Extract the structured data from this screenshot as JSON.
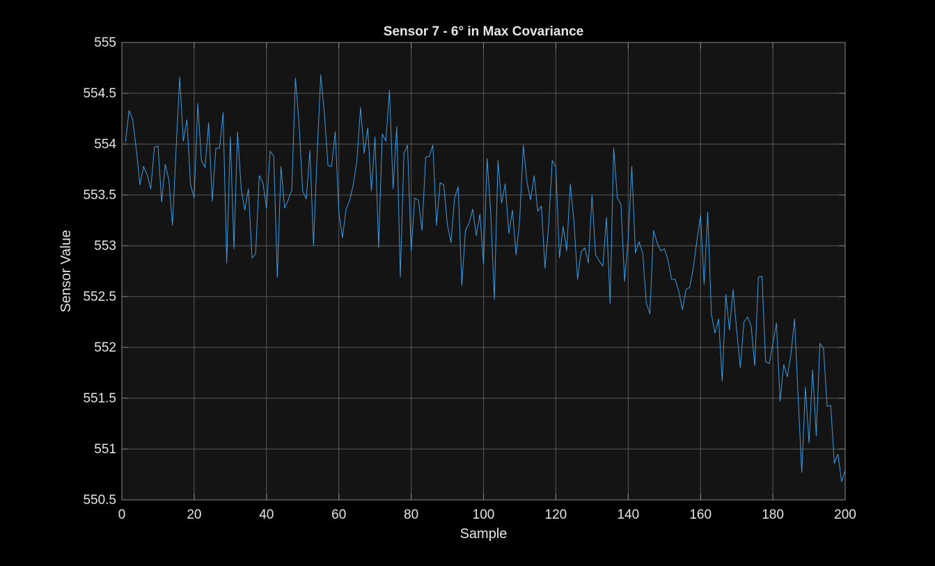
{
  "chart_data": {
    "type": "line",
    "title": "Sensor 7 - 6° in Max Covariance",
    "xlabel": "Sample",
    "ylabel": "Sensor Value",
    "xlim": [
      0,
      200
    ],
    "ylim": [
      550.5,
      555
    ],
    "xticks": [
      0,
      20,
      40,
      60,
      80,
      100,
      120,
      140,
      160,
      180,
      200
    ],
    "yticks": [
      550.5,
      551,
      551.5,
      552,
      552.5,
      553,
      553.5,
      554,
      554.5,
      555
    ],
    "ytick_labels": [
      "550.5",
      "551",
      "551.5",
      "552",
      "552.5",
      "553",
      "553.5",
      "554",
      "554.5",
      "555"
    ],
    "grid": true,
    "colors": {
      "figure_bg": "#000000",
      "axes_bg": "#141414",
      "line": "#3d9be0",
      "grid": "#5a5a5a",
      "text": "#e6e6e6"
    },
    "series": [
      {
        "x": [
          1,
          2,
          3,
          4,
          5,
          6,
          7,
          8,
          9,
          10,
          11,
          12,
          13,
          14,
          15,
          16,
          17,
          18,
          19,
          20,
          21,
          22,
          23,
          24,
          25,
          26,
          27,
          28,
          29,
          30,
          31,
          32,
          33,
          34,
          35,
          36,
          37,
          38,
          39,
          40,
          41,
          42,
          43,
          44,
          45,
          46,
          47,
          48,
          49,
          50,
          51,
          52,
          53,
          54,
          55,
          56,
          57,
          58,
          59,
          60,
          61,
          62,
          63,
          64,
          65,
          66,
          67,
          68,
          69,
          70,
          71,
          72,
          73,
          74,
          75,
          76,
          77,
          78,
          79,
          80,
          81,
          82,
          83,
          84,
          85,
          86,
          87,
          88,
          89,
          90,
          91,
          92,
          93,
          94,
          95,
          96,
          97,
          98,
          99,
          100,
          101,
          102,
          103,
          104,
          105,
          106,
          107,
          108,
          109,
          110,
          111,
          112,
          113,
          114,
          115,
          116,
          117,
          118,
          119,
          120,
          121,
          122,
          123,
          124,
          125,
          126,
          127,
          128,
          129,
          130,
          131,
          132,
          133,
          134,
          135,
          136,
          137,
          138,
          139,
          140,
          141,
          142,
          143,
          144,
          145,
          146,
          147,
          148,
          149,
          150,
          151,
          152,
          153,
          154,
          155,
          156,
          157,
          158,
          159,
          160,
          161,
          162,
          163,
          164,
          165,
          166,
          167,
          168,
          169,
          170,
          171,
          172,
          173,
          174,
          175,
          176,
          177,
          178,
          179,
          180,
          181,
          182,
          183,
          184,
          185,
          186,
          187,
          188,
          189,
          190,
          191,
          192,
          193,
          194,
          195,
          196,
          197,
          198,
          199,
          200
        ],
        "values": [
          554.02,
          554.33,
          554.24,
          553.95,
          553.6,
          553.78,
          553.7,
          553.56,
          553.97,
          553.98,
          553.43,
          553.8,
          553.65,
          553.2,
          553.95,
          554.66,
          554.03,
          554.24,
          553.6,
          553.47,
          554.4,
          553.84,
          553.77,
          554.21,
          553.44,
          553.96,
          553.96,
          554.31,
          552.83,
          554.07,
          552.97,
          554.12,
          553.56,
          553.35,
          553.56,
          552.88,
          552.92,
          553.69,
          553.62,
          553.37,
          553.93,
          553.88,
          552.69,
          553.78,
          553.37,
          553.45,
          553.55,
          554.65,
          554.2,
          553.54,
          553.46,
          553.94,
          553.0,
          553.9,
          554.68,
          554.3,
          553.79,
          553.78,
          554.12,
          553.33,
          553.08,
          553.36,
          553.45,
          553.6,
          553.84,
          554.36,
          553.91,
          554.16,
          553.54,
          554.07,
          552.98,
          554.1,
          554.03,
          554.53,
          553.56,
          554.17,
          552.69,
          553.91,
          553.99,
          552.95,
          553.47,
          553.45,
          553.15,
          553.87,
          553.88,
          553.99,
          553.2,
          553.62,
          553.6,
          553.21,
          553.03,
          553.47,
          553.58,
          552.61,
          553.15,
          553.22,
          553.36,
          553.1,
          553.31,
          552.82,
          553.86,
          553.32,
          552.47,
          553.84,
          553.42,
          553.61,
          553.12,
          553.35,
          552.91,
          553.25,
          553.99,
          553.63,
          553.45,
          553.69,
          553.34,
          553.39,
          552.78,
          553.2,
          553.84,
          553.77,
          552.88,
          553.19,
          552.95,
          553.61,
          553.24,
          552.67,
          552.94,
          552.98,
          552.83,
          553.5,
          552.91,
          552.85,
          552.8,
          553.28,
          552.43,
          553.96,
          553.47,
          553.41,
          552.65,
          553.06,
          553.78,
          552.93,
          553.04,
          552.93,
          552.44,
          552.33,
          553.15,
          553.03,
          552.95,
          552.97,
          552.86,
          552.67,
          552.67,
          552.55,
          552.37,
          552.57,
          552.59,
          552.78,
          553.05,
          553.3,
          552.62,
          553.33,
          552.33,
          552.14,
          552.28,
          551.67,
          552.52,
          552.17,
          552.57,
          552.17,
          551.8,
          552.25,
          552.3,
          552.21,
          551.82,
          552.69,
          552.7,
          551.86,
          551.84,
          552.04,
          552.24,
          551.47,
          551.83,
          551.71,
          551.93,
          552.28,
          551.5,
          550.77,
          551.61,
          551.06,
          551.78,
          551.13,
          552.04,
          551.99,
          551.42,
          551.43,
          550.86,
          550.95,
          550.68,
          550.79
        ]
      }
    ]
  }
}
